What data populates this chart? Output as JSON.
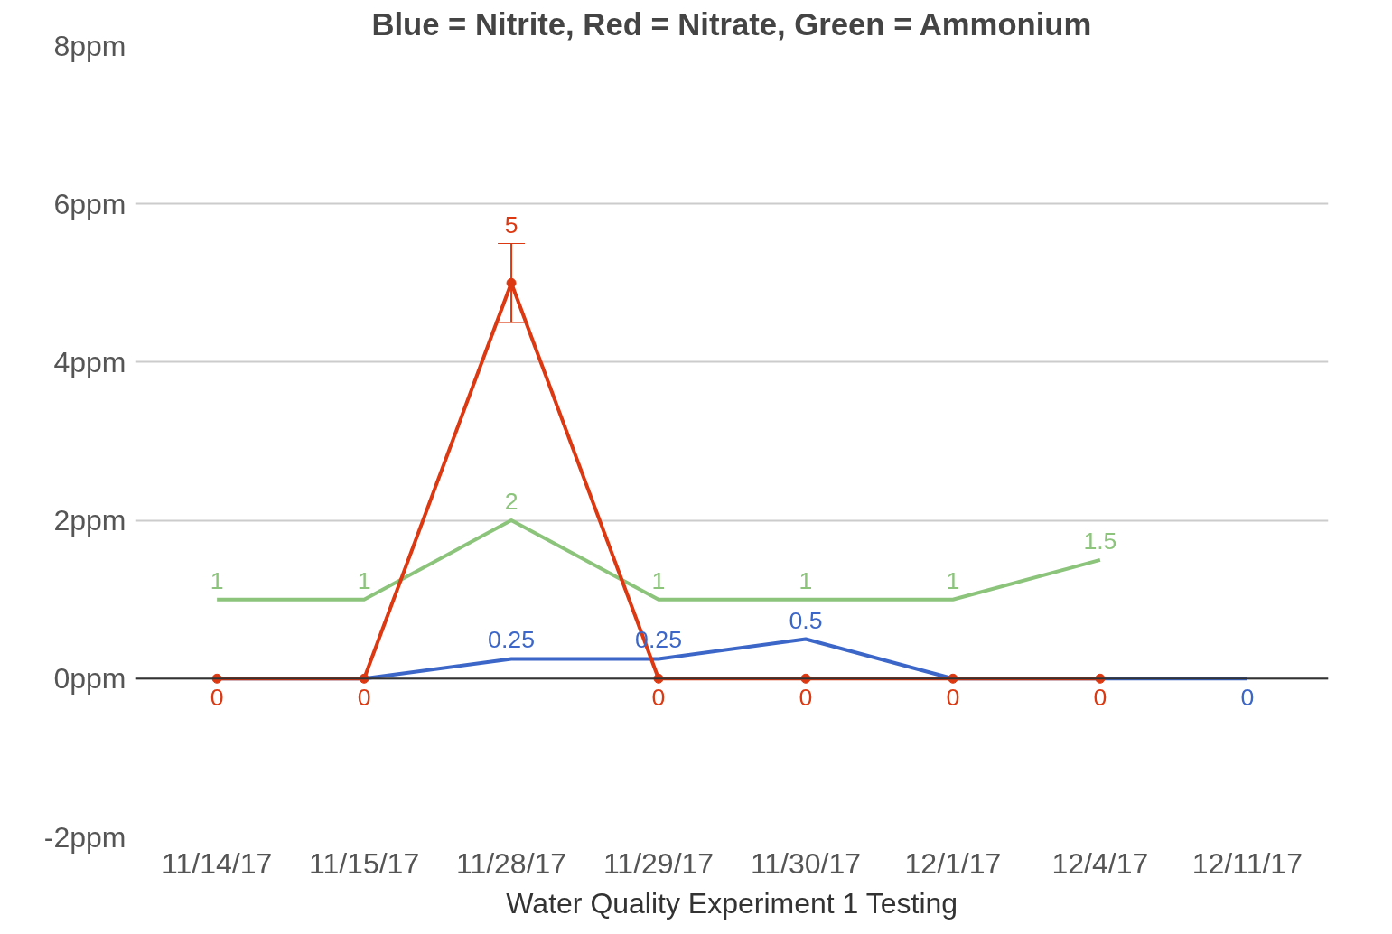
{
  "chart_data": {
    "type": "line",
    "title": "Blue = Nitrite, Red = Nitrate, Green = Ammonium",
    "xlabel": "Water Quality Experiment 1 Testing",
    "categories": [
      "11/14/17",
      "11/15/17",
      "11/28/17",
      "11/29/17",
      "11/30/17",
      "12/1/17",
      "12/4/17",
      "12/11/17"
    ],
    "series": [
      {
        "color": "#3c67c8",
        "values": [
          0,
          0,
          0.25,
          0.25,
          0.5,
          0,
          0,
          0
        ],
        "value_labels": [
          null,
          null,
          "0.25",
          "0.25",
          "0.5",
          null,
          null,
          "0"
        ],
        "marker": "none"
      },
      {
        "color": "#8cc47c",
        "values": [
          1,
          1,
          2,
          1,
          1,
          1,
          1.5,
          null
        ],
        "value_labels": [
          "1",
          "1",
          "2",
          "1",
          "1",
          "1",
          "1.5",
          null
        ],
        "marker": "none"
      },
      {
        "color": "#dc3912",
        "values": [
          0,
          0,
          5,
          0,
          0,
          0,
          0,
          null
        ],
        "value_labels": [
          "0",
          "0",
          "5",
          "0",
          "0",
          "0",
          "0",
          null
        ],
        "errors": [
          null,
          null,
          0.5,
          null,
          null,
          null,
          null,
          null
        ],
        "marker": "circle"
      }
    ],
    "ylim": [
      -2,
      8
    ],
    "yticks": [
      {
        "value": -2,
        "label": "-2ppm"
      },
      {
        "value": 0,
        "label": "0ppm"
      },
      {
        "value": 2,
        "label": "2ppm"
      },
      {
        "value": 4,
        "label": "4ppm"
      },
      {
        "value": 6,
        "label": "6ppm"
      },
      {
        "value": 8,
        "label": "8ppm"
      }
    ],
    "grid": "y",
    "line_style": "solid",
    "ref_lines": [
      {
        "axis": "y",
        "value": 0,
        "color": "#333333"
      }
    ]
  }
}
